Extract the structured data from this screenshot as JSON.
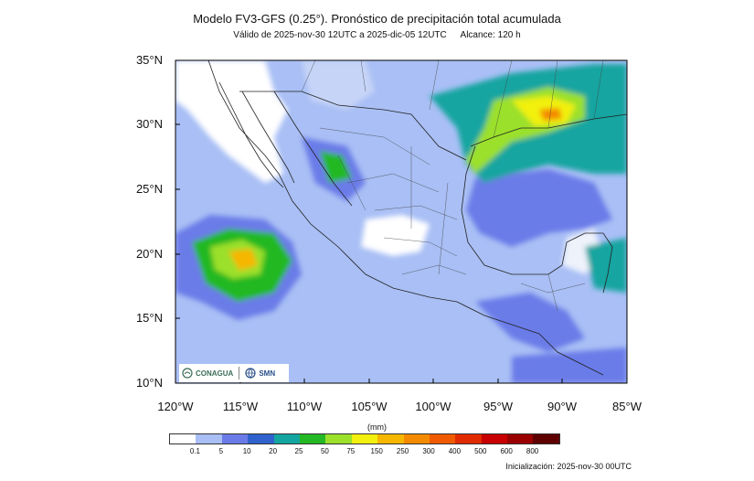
{
  "header": {
    "title": "Modelo FV3-GFS (0.25°). Pronóstico de precipitación total acumulada",
    "validity": "Válido de 2025-nov-30 12UTC a 2025-dic-05 12UTC",
    "range": "Alcance: 120 h"
  },
  "map": {
    "lat_labels": [
      "35°N",
      "30°N",
      "25°N",
      "20°N",
      "15°N",
      "10°N"
    ],
    "lon_labels": [
      "120°W",
      "115°W",
      "110°W",
      "105°W",
      "100°W",
      "95°W",
      "90°W",
      "85°W"
    ],
    "extent": {
      "lon": [
        -120,
        -85
      ],
      "lat": [
        10,
        35
      ]
    },
    "background_color": "#a9bff5"
  },
  "logos": {
    "left": "CONAGUA",
    "right": "SMN"
  },
  "legend": {
    "units": "(mm)",
    "ticks": [
      "0.1",
      "5",
      "10",
      "20",
      "25",
      "50",
      "75",
      "150",
      "250",
      "300",
      "400",
      "500",
      "600",
      "800"
    ],
    "colors": [
      "#ffffff",
      "#a9bff5",
      "#6a7be8",
      "#2f62cc",
      "#14a5a0",
      "#24b824",
      "#9be02b",
      "#f2f00f",
      "#f7b600",
      "#f48a00",
      "#f05a00",
      "#e02a00",
      "#c80000",
      "#9a0000",
      "#5e0000"
    ]
  },
  "footer": {
    "init": "Inicialización: 2025-nov-30 00UTC"
  }
}
